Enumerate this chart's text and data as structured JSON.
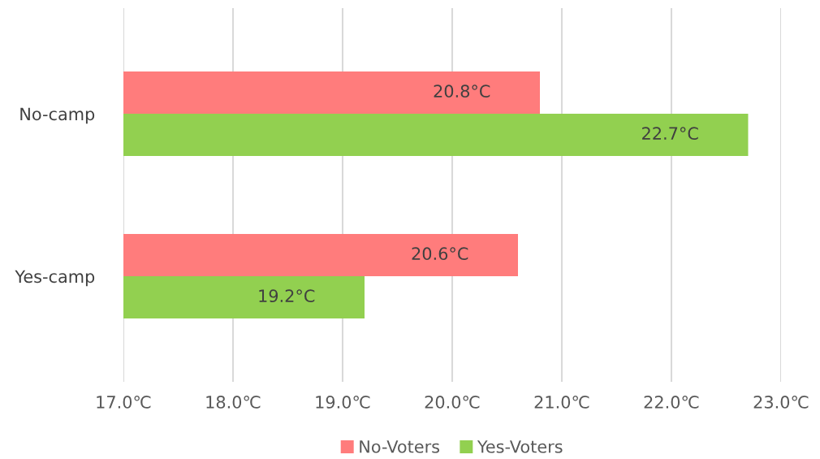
{
  "chart_data": {
    "type": "bar",
    "orientation": "horizontal",
    "categories": [
      "No-camp",
      "Yes-camp"
    ],
    "series": [
      {
        "name": "No-Voters",
        "color": "#ff7c7c",
        "values": [
          20.8,
          20.6
        ],
        "value_labels": [
          "20.8°C",
          "20.6°C"
        ]
      },
      {
        "name": "Yes-Voters",
        "color": "#92d050",
        "values": [
          22.7,
          19.2
        ],
        "value_labels": [
          "22.7°C",
          "19.2°C"
        ]
      }
    ],
    "xlim": [
      17,
      23
    ],
    "xticks": [
      {
        "value": 17,
        "label": "17.0℃"
      },
      {
        "value": 18,
        "label": "18.0℃"
      },
      {
        "value": 19,
        "label": "19.0℃"
      },
      {
        "value": 20,
        "label": "20.0℃"
      },
      {
        "value": 21,
        "label": "21.0℃"
      },
      {
        "value": 22,
        "label": "22.0℃"
      },
      {
        "value": 23,
        "label": "23.0℃"
      }
    ],
    "grid": "x",
    "legend": "bottom"
  }
}
